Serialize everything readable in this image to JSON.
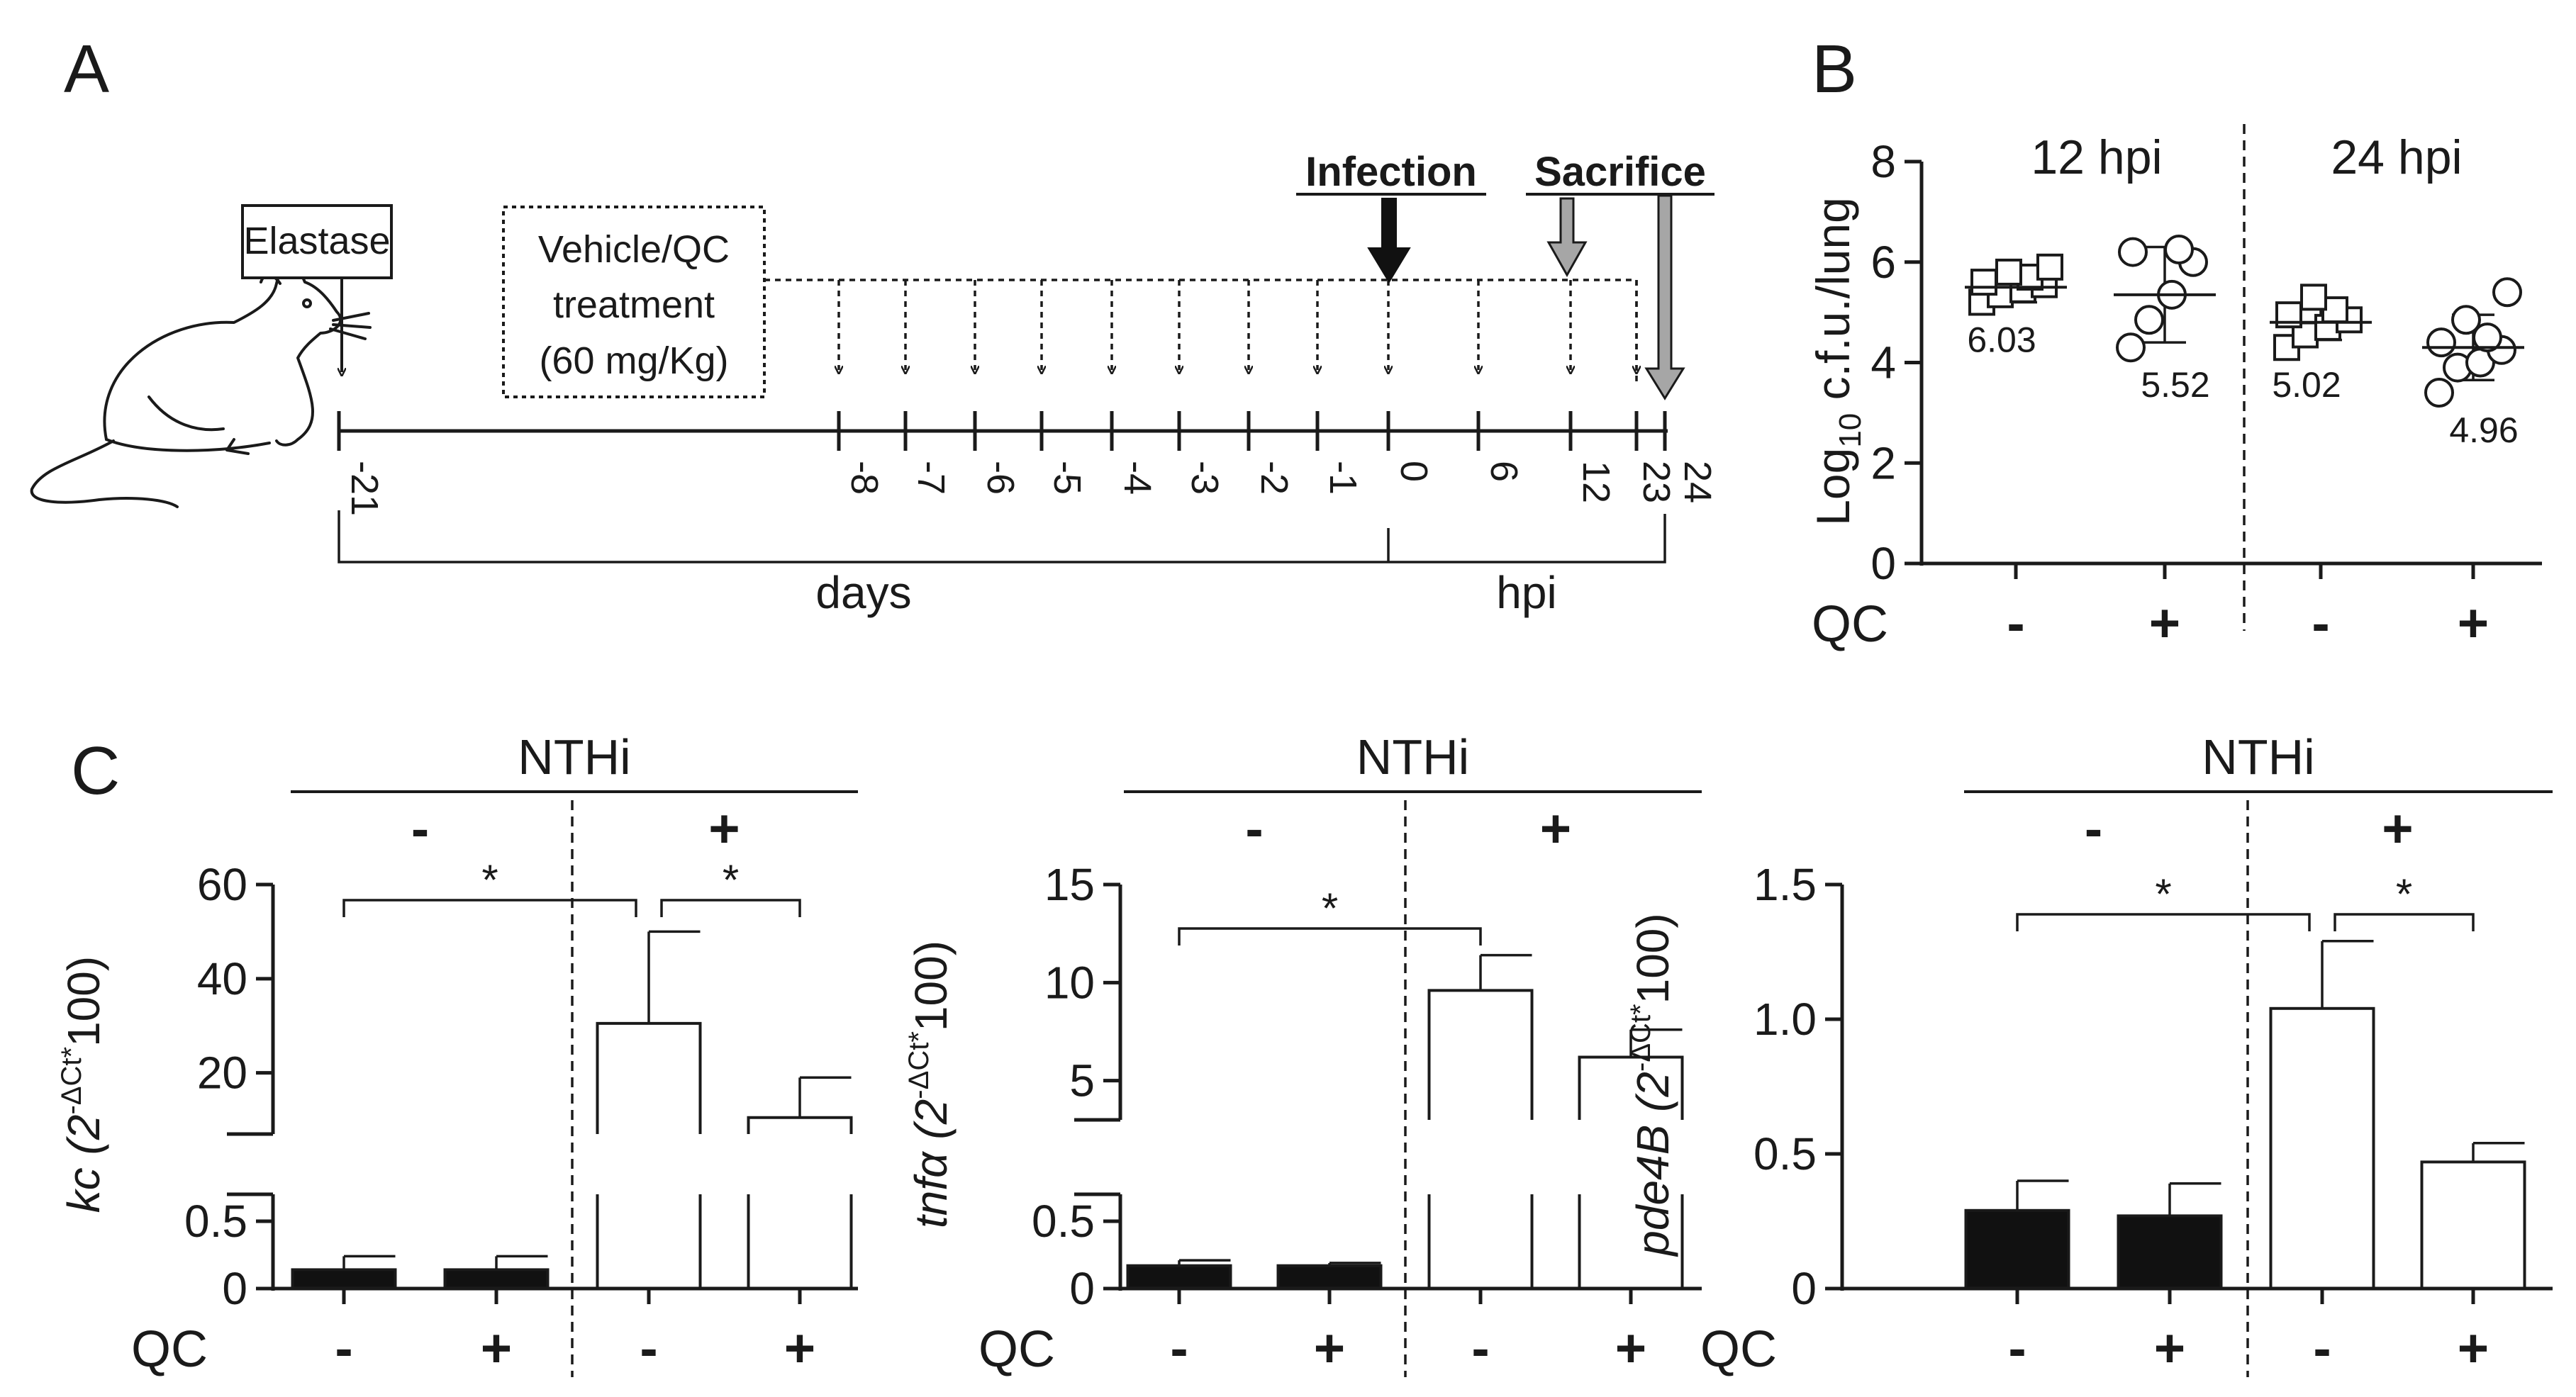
{
  "panel_labels": {
    "a": "A",
    "b": "B",
    "c": "C"
  },
  "timeline": {
    "elastase_label": "Elastase",
    "treatment_lines": [
      "Vehicle/QC",
      "treatment",
      "(60 mg/Kg)"
    ],
    "infection_label": "Infection",
    "sacrifice_label": "Sacrifice",
    "day_ticks": [
      "-21",
      "-8",
      "-7",
      "-6",
      "-5",
      "-4",
      "-3",
      "-2",
      "-1",
      "0"
    ],
    "hpi_ticks": [
      "6",
      "12",
      "23",
      "24"
    ],
    "days_label": "days",
    "hpi_label": "hpi"
  },
  "chart_data": [
    {
      "id": "B",
      "type": "scatter",
      "ylabel": "Log10 c.f.u./lung",
      "ylabel_main": "Log",
      "ylabel_sub": "10",
      "ylabel_rest": " c.f.u./lung",
      "ylim": [
        0,
        8
      ],
      "yticks": [
        "0",
        "2",
        "4",
        "6",
        "8"
      ],
      "x_label": "QC",
      "group_headers": [
        "12 hpi",
        "24 hpi"
      ],
      "groups": [
        {
          "qc": "-",
          "marker": "square",
          "annotation": "6.03",
          "mean": 5.5,
          "sd": 0.3,
          "points": [
            5.2,
            5.35,
            5.45,
            5.55,
            5.6,
            5.7,
            5.8,
            5.9
          ]
        },
        {
          "qc": "+",
          "marker": "circle",
          "annotation": "5.52",
          "mean": 5.35,
          "sd": 0.95,
          "points": [
            4.3,
            4.85,
            5.35,
            6.0,
            6.2,
            6.25
          ]
        },
        {
          "qc": "-",
          "marker": "square",
          "annotation": "5.02",
          "mean": 4.8,
          "sd": 0.35,
          "points": [
            4.3,
            4.55,
            4.7,
            4.85,
            4.95,
            5.05,
            5.3
          ]
        },
        {
          "qc": "+",
          "marker": "circle",
          "annotation": "4.96",
          "mean": 4.3,
          "sd": 0.65,
          "points": [
            3.4,
            3.9,
            4.0,
            4.25,
            4.4,
            4.5,
            4.85,
            5.4
          ]
        }
      ]
    },
    {
      "id": "C1",
      "type": "bar",
      "header": "NTHi",
      "nthi": [
        "-",
        "+"
      ],
      "gene": "kc",
      "ylabel_rest": " (2",
      "ylabel_sup": "-ΔCt*",
      "ylabel_end": "100)",
      "x_label": "QC",
      "categories": [
        "-",
        "+",
        "-",
        "+"
      ],
      "values": [
        0.14,
        0.14,
        30.5,
        10.5
      ],
      "errors": [
        0.1,
        0.1,
        19.5,
        8.5
      ],
      "lower_ticks": [
        "0",
        "0.5"
      ],
      "upper_ticks": [
        "20",
        "40",
        "60"
      ],
      "lower_range": [
        0,
        0.7
      ],
      "upper_range": [
        7,
        60
      ],
      "fills": [
        "#111111",
        "#111111",
        "#ffffff",
        "#ffffff"
      ],
      "significance": [
        {
          "from": 0,
          "to": 2,
          "label": "*"
        },
        {
          "from": 2,
          "to": 3,
          "label": "*"
        }
      ]
    },
    {
      "id": "C2",
      "type": "bar",
      "header": "NTHi",
      "nthi": [
        "-",
        "+"
      ],
      "gene": "tnfα",
      "ylabel_rest": " (2",
      "ylabel_sup": "-ΔCt*",
      "ylabel_end": "100)",
      "x_label": "QC",
      "categories": [
        "-",
        "+",
        "-",
        "+"
      ],
      "values": [
        0.17,
        0.17,
        9.6,
        6.2
      ],
      "errors": [
        0.04,
        0.02,
        1.8,
        1.4
      ],
      "lower_ticks": [
        "0",
        "0.5"
      ],
      "upper_ticks": [
        "5",
        "10",
        "15"
      ],
      "lower_range": [
        0,
        0.7
      ],
      "upper_range": [
        3,
        15
      ],
      "fills": [
        "#111111",
        "#111111",
        "#ffffff",
        "#ffffff"
      ],
      "significance": [
        {
          "from": 0,
          "to": 2,
          "label": "*"
        }
      ]
    },
    {
      "id": "C3",
      "type": "bar",
      "header": "NTHi",
      "nthi": [
        "-",
        "+"
      ],
      "gene": "pde4B",
      "ylabel_rest": " (2",
      "ylabel_sup": "-ΔCt*",
      "ylabel_end": "100)",
      "x_label": "QC",
      "categories": [
        "-",
        "+",
        "-",
        "+"
      ],
      "values": [
        0.29,
        0.27,
        1.04,
        0.47
      ],
      "errors": [
        0.11,
        0.12,
        0.25,
        0.07
      ],
      "ylim": [
        0,
        1.5
      ],
      "ticks": [
        "0",
        "0.5",
        "1.0",
        "1.5"
      ],
      "fills": [
        "#111111",
        "#111111",
        "#ffffff",
        "#ffffff"
      ],
      "significance": [
        {
          "from": 0,
          "to": 2,
          "label": "*"
        },
        {
          "from": 2,
          "to": 3,
          "label": "*"
        }
      ]
    }
  ]
}
